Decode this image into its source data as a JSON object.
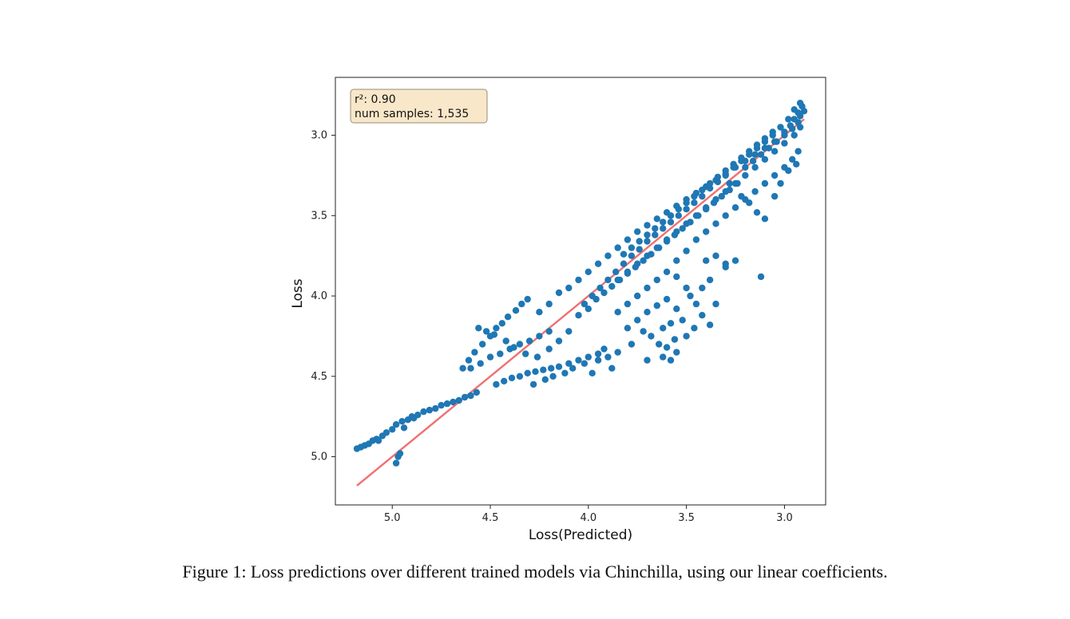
{
  "chart_data": {
    "type": "scatter",
    "xlabel": "Loss(Predicted)",
    "ylabel": "Loss",
    "x_inverted": true,
    "y_inverted": true,
    "xlim": [
      5.29,
      2.79
    ],
    "ylim": [
      5.3,
      2.64
    ],
    "x_ticks": [
      5.0,
      4.5,
      4.0,
      3.5,
      3.0
    ],
    "y_ticks": [
      3.0,
      3.5,
      4.0,
      4.5,
      5.0
    ],
    "x_tick_labels": [
      "5.0",
      "4.5",
      "4.0",
      "3.5",
      "3.0"
    ],
    "y_tick_labels": [
      "3.0",
      "3.5",
      "4.0",
      "4.5",
      "5.0"
    ],
    "grid": false,
    "annotation": {
      "line1": "r²: 0.90",
      "line2": "num samples: 1,535"
    },
    "point_color": "#1f77b4",
    "fit_line_color": "#f07070",
    "fit_line": {
      "x": [
        5.18,
        2.9
      ],
      "y": [
        5.18,
        2.9
      ]
    },
    "points": [
      [
        5.18,
        4.95
      ],
      [
        5.16,
        4.94
      ],
      [
        5.14,
        4.93
      ],
      [
        5.12,
        4.92
      ],
      [
        5.1,
        4.9
      ],
      [
        5.08,
        4.89
      ],
      [
        5.05,
        4.87
      ],
      [
        5.03,
        4.85
      ],
      [
        5.0,
        4.83
      ],
      [
        4.98,
        4.8
      ],
      [
        4.95,
        4.78
      ],
      [
        4.92,
        4.77
      ],
      [
        4.9,
        4.75
      ],
      [
        4.87,
        4.74
      ],
      [
        4.84,
        4.72
      ],
      [
        4.81,
        4.71
      ],
      [
        4.78,
        4.7
      ],
      [
        4.75,
        4.68
      ],
      [
        4.72,
        4.67
      ],
      [
        4.69,
        4.66
      ],
      [
        4.66,
        4.65
      ],
      [
        4.63,
        4.63
      ],
      [
        4.6,
        4.62
      ],
      [
        4.57,
        4.6
      ],
      [
        4.97,
        5.0
      ],
      [
        4.98,
        5.04
      ],
      [
        4.96,
        4.98
      ],
      [
        5.07,
        4.9
      ],
      [
        4.94,
        4.82
      ],
      [
        4.89,
        4.76
      ],
      [
        4.61,
        4.4
      ],
      [
        4.58,
        4.35
      ],
      [
        4.54,
        4.3
      ],
      [
        4.5,
        4.25
      ],
      [
        4.47,
        4.2
      ],
      [
        4.44,
        4.17
      ],
      [
        4.41,
        4.13
      ],
      [
        4.37,
        4.09
      ],
      [
        4.34,
        4.05
      ],
      [
        4.31,
        4.02
      ],
      [
        4.64,
        4.45
      ],
      [
        4.6,
        4.45
      ],
      [
        4.55,
        4.42
      ],
      [
        4.5,
        4.38
      ],
      [
        4.45,
        4.36
      ],
      [
        4.4,
        4.33
      ],
      [
        4.35,
        4.3
      ],
      [
        4.3,
        4.28
      ],
      [
        4.25,
        4.25
      ],
      [
        4.2,
        4.22
      ],
      [
        4.47,
        4.55
      ],
      [
        4.43,
        4.53
      ],
      [
        4.39,
        4.51
      ],
      [
        4.35,
        4.5
      ],
      [
        4.31,
        4.48
      ],
      [
        4.27,
        4.47
      ],
      [
        4.23,
        4.46
      ],
      [
        4.19,
        4.45
      ],
      [
        4.15,
        4.44
      ],
      [
        4.1,
        4.42
      ],
      [
        4.05,
        4.4
      ],
      [
        4.0,
        4.38
      ],
      [
        3.95,
        4.36
      ],
      [
        3.92,
        4.33
      ],
      [
        4.28,
        4.55
      ],
      [
        4.22,
        4.52
      ],
      [
        4.18,
        4.5
      ],
      [
        4.12,
        4.48
      ],
      [
        4.08,
        4.45
      ],
      [
        4.02,
        4.42
      ],
      [
        4.25,
        4.1
      ],
      [
        4.2,
        4.05
      ],
      [
        4.15,
        3.98
      ],
      [
        4.1,
        3.95
      ],
      [
        4.05,
        3.9
      ],
      [
        4.0,
        3.85
      ],
      [
        3.95,
        3.8
      ],
      [
        3.9,
        3.75
      ],
      [
        3.85,
        3.7
      ],
      [
        3.8,
        3.65
      ],
      [
        3.75,
        3.6
      ],
      [
        3.7,
        3.56
      ],
      [
        3.65,
        3.52
      ],
      [
        3.6,
        3.48
      ],
      [
        3.55,
        3.44
      ],
      [
        3.5,
        3.4
      ],
      [
        3.45,
        3.36
      ],
      [
        3.4,
        3.32
      ],
      [
        3.35,
        3.28
      ],
      [
        3.3,
        3.24
      ],
      [
        3.25,
        3.2
      ],
      [
        3.2,
        3.16
      ],
      [
        3.15,
        3.12
      ],
      [
        3.1,
        3.08
      ],
      [
        3.05,
        3.04
      ],
      [
        3.0,
        3.0
      ],
      [
        2.96,
        2.96
      ],
      [
        2.93,
        2.92
      ],
      [
        2.92,
        2.88
      ],
      [
        2.9,
        2.85
      ],
      [
        2.91,
        2.82
      ],
      [
        2.92,
        2.8
      ],
      [
        2.95,
        2.84
      ],
      [
        2.98,
        2.9
      ],
      [
        3.02,
        2.95
      ],
      [
        3.06,
        3.0
      ],
      [
        3.1,
        3.04
      ],
      [
        3.14,
        3.08
      ],
      [
        3.18,
        3.12
      ],
      [
        3.22,
        3.16
      ],
      [
        3.26,
        3.2
      ],
      [
        3.3,
        3.25
      ],
      [
        3.34,
        3.29
      ],
      [
        3.38,
        3.33
      ],
      [
        3.42,
        3.38
      ],
      [
        3.46,
        3.42
      ],
      [
        3.5,
        3.46
      ],
      [
        3.54,
        3.5
      ],
      [
        3.58,
        3.54
      ],
      [
        3.62,
        3.58
      ],
      [
        3.66,
        3.62
      ],
      [
        3.7,
        3.66
      ],
      [
        3.74,
        3.71
      ],
      [
        3.78,
        3.75
      ],
      [
        3.82,
        3.8
      ],
      [
        3.86,
        3.85
      ],
      [
        3.9,
        3.9
      ],
      [
        3.94,
        3.95
      ],
      [
        3.98,
        4.0
      ],
      [
        4.02,
        4.05
      ],
      [
        3.2,
        3.25
      ],
      [
        3.15,
        3.2
      ],
      [
        3.1,
        3.15
      ],
      [
        3.05,
        3.1
      ],
      [
        3.0,
        3.05
      ],
      [
        2.95,
        3.0
      ],
      [
        2.92,
        2.95
      ],
      [
        3.25,
        3.3
      ],
      [
        3.3,
        3.35
      ],
      [
        3.35,
        3.4
      ],
      [
        3.4,
        3.45
      ],
      [
        3.45,
        3.5
      ],
      [
        3.5,
        3.55
      ],
      [
        3.55,
        3.6
      ],
      [
        3.6,
        3.65
      ],
      [
        3.65,
        3.7
      ],
      [
        3.7,
        3.75
      ],
      [
        3.75,
        3.8
      ],
      [
        3.8,
        3.85
      ],
      [
        3.85,
        3.9
      ],
      [
        3.25,
        3.45
      ],
      [
        3.2,
        3.4
      ],
      [
        3.15,
        3.35
      ],
      [
        3.1,
        3.3
      ],
      [
        3.05,
        3.25
      ],
      [
        3.0,
        3.2
      ],
      [
        2.96,
        3.15
      ],
      [
        2.93,
        3.1
      ],
      [
        3.3,
        3.5
      ],
      [
        3.35,
        3.55
      ],
      [
        3.4,
        3.6
      ],
      [
        3.45,
        3.65
      ],
      [
        3.5,
        3.72
      ],
      [
        3.55,
        3.78
      ],
      [
        3.6,
        3.85
      ],
      [
        3.65,
        3.9
      ],
      [
        3.7,
        3.95
      ],
      [
        3.75,
        4.0
      ],
      [
        3.8,
        4.05
      ],
      [
        3.85,
        4.1
      ],
      [
        3.4,
        3.78
      ],
      [
        3.35,
        3.75
      ],
      [
        3.3,
        3.8
      ],
      [
        3.25,
        3.78
      ],
      [
        3.55,
        3.88
      ],
      [
        3.5,
        3.95
      ],
      [
        3.6,
        4.02
      ],
      [
        3.65,
        4.06
      ],
      [
        3.55,
        4.08
      ],
      [
        3.48,
        4.0
      ],
      [
        3.7,
        4.1
      ],
      [
        3.75,
        4.15
      ],
      [
        3.8,
        4.2
      ],
      [
        3.72,
        4.22
      ],
      [
        3.78,
        4.3
      ],
      [
        3.85,
        4.35
      ],
      [
        3.9,
        4.38
      ],
      [
        3.95,
        4.4
      ],
      [
        3.88,
        4.45
      ],
      [
        3.98,
        4.48
      ],
      [
        3.62,
        4.2
      ],
      [
        3.58,
        4.17
      ],
      [
        3.52,
        4.15
      ],
      [
        3.45,
        4.05
      ],
      [
        3.42,
        4.12
      ],
      [
        3.38,
        4.18
      ],
      [
        3.35,
        4.05
      ],
      [
        3.42,
        3.95
      ],
      [
        3.38,
        3.9
      ],
      [
        3.3,
        3.82
      ],
      [
        3.68,
        4.25
      ],
      [
        3.64,
        4.3
      ],
      [
        3.6,
        4.32
      ],
      [
        3.56,
        4.27
      ],
      [
        3.5,
        4.25
      ],
      [
        3.46,
        4.2
      ],
      [
        3.55,
        4.35
      ],
      [
        3.62,
        4.38
      ],
      [
        3.7,
        4.4
      ],
      [
        3.58,
        4.4
      ],
      [
        3.12,
        3.88
      ],
      [
        3.28,
        3.3
      ],
      [
        3.22,
        3.38
      ],
      [
        3.18,
        3.42
      ],
      [
        3.14,
        3.48
      ],
      [
        3.1,
        3.52
      ],
      [
        3.05,
        3.38
      ],
      [
        3.02,
        3.3
      ],
      [
        2.98,
        3.22
      ],
      [
        2.94,
        3.18
      ],
      [
        4.1,
        4.22
      ],
      [
        4.15,
        4.28
      ],
      [
        4.2,
        4.33
      ],
      [
        4.26,
        4.38
      ],
      [
        4.32,
        4.36
      ],
      [
        4.38,
        4.32
      ],
      [
        4.42,
        4.28
      ],
      [
        4.48,
        4.24
      ],
      [
        4.52,
        4.22
      ],
      [
        4.56,
        4.2
      ],
      [
        4.05,
        4.12
      ],
      [
        4.0,
        4.08
      ],
      [
        3.96,
        4.02
      ],
      [
        3.92,
        3.98
      ],
      [
        3.88,
        3.94
      ],
      [
        3.84,
        3.9
      ],
      [
        3.8,
        3.86
      ],
      [
        3.76,
        3.82
      ],
      [
        3.72,
        3.78
      ],
      [
        3.68,
        3.74
      ],
      [
        3.64,
        3.7
      ],
      [
        3.6,
        3.66
      ],
      [
        3.56,
        3.62
      ],
      [
        3.52,
        3.58
      ],
      [
        3.48,
        3.54
      ],
      [
        3.44,
        3.5
      ],
      [
        3.4,
        3.46
      ],
      [
        3.36,
        3.42
      ],
      [
        3.32,
        3.38
      ],
      [
        3.28,
        3.34
      ],
      [
        3.24,
        3.3
      ],
      [
        3.2,
        3.2
      ],
      [
        3.16,
        3.16
      ],
      [
        3.12,
        3.12
      ],
      [
        3.08,
        3.08
      ],
      [
        3.04,
        3.04
      ],
      [
        3.0,
        2.98
      ],
      [
        2.97,
        2.94
      ],
      [
        2.95,
        2.9
      ],
      [
        2.93,
        2.86
      ],
      [
        3.06,
        2.98
      ],
      [
        3.1,
        3.02
      ],
      [
        3.14,
        3.06
      ],
      [
        3.18,
        3.1
      ],
      [
        3.22,
        3.14
      ],
      [
        3.26,
        3.18
      ],
      [
        3.3,
        3.22
      ],
      [
        3.34,
        3.26
      ],
      [
        3.38,
        3.3
      ],
      [
        3.42,
        3.34
      ],
      [
        3.46,
        3.38
      ],
      [
        3.5,
        3.42
      ],
      [
        3.54,
        3.46
      ],
      [
        3.58,
        3.5
      ],
      [
        3.62,
        3.54
      ],
      [
        3.66,
        3.58
      ],
      [
        3.7,
        3.62
      ],
      [
        3.74,
        3.66
      ],
      [
        3.78,
        3.7
      ],
      [
        3.82,
        3.74
      ]
    ]
  },
  "caption": "Figure 1: Loss predictions over different trained models via Chinchilla, using our linear coefficients."
}
